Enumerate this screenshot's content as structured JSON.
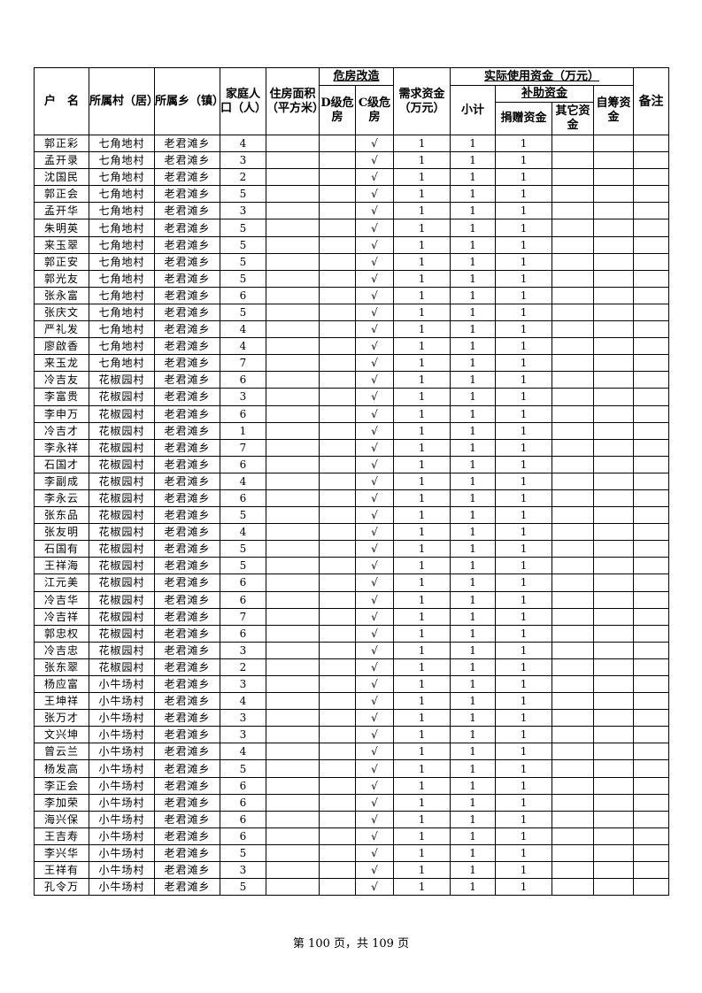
{
  "header": {
    "name": "户　名",
    "village": "所属村（居）",
    "town": "所属乡（镇）",
    "population": "家庭人口（人）",
    "area": "住房面积（平方米）",
    "renovation": "危房改造",
    "d_level": "D级危房",
    "c_level": "C级危房",
    "need_funds": "需求资金（万元）",
    "actual_funds": "实际使用资金（万元）",
    "subtotal": "小计",
    "subsidy": "补助资金",
    "donated": "捐赠资金",
    "other": "其它资金",
    "self_raised": "自筹资金",
    "remarks": "备注"
  },
  "rows": [
    [
      "郭正彩",
      "七角地村",
      "老君滩乡",
      "4"
    ],
    [
      "孟开录",
      "七角地村",
      "老君滩乡",
      "3"
    ],
    [
      "沈国民",
      "七角地村",
      "老君滩乡",
      "2"
    ],
    [
      "郭正会",
      "七角地村",
      "老君滩乡",
      "5"
    ],
    [
      "孟开华",
      "七角地村",
      "老君滩乡",
      "3"
    ],
    [
      "朱明英",
      "七角地村",
      "老君滩乡",
      "5"
    ],
    [
      "来玉翠",
      "七角地村",
      "老君滩乡",
      "5"
    ],
    [
      "郭正安",
      "七角地村",
      "老君滩乡",
      "5"
    ],
    [
      "郭光友",
      "七角地村",
      "老君滩乡",
      "5"
    ],
    [
      "张永富",
      "七角地村",
      "老君滩乡",
      "6"
    ],
    [
      "张庆文",
      "七角地村",
      "老君滩乡",
      "5"
    ],
    [
      "严礼发",
      "七角地村",
      "老君滩乡",
      "4"
    ],
    [
      "廖啟香",
      "七角地村",
      "老君滩乡",
      "4"
    ],
    [
      "来玉龙",
      "七角地村",
      "老君滩乡",
      "7"
    ],
    [
      "冷吉友",
      "花椒园村",
      "老君滩乡",
      "6"
    ],
    [
      "李富贵",
      "花椒园村",
      "老君滩乡",
      "3"
    ],
    [
      "李申万",
      "花椒园村",
      "老君滩乡",
      "6"
    ],
    [
      "冷吉才",
      "花椒园村",
      "老君滩乡",
      "1"
    ],
    [
      "李永祥",
      "花椒园村",
      "老君滩乡",
      "7"
    ],
    [
      "石国才",
      "花椒园村",
      "老君滩乡",
      "6"
    ],
    [
      "李副成",
      "花椒园村",
      "老君滩乡",
      "4"
    ],
    [
      "李永云",
      "花椒园村",
      "老君滩乡",
      "6"
    ],
    [
      "张东品",
      "花椒园村",
      "老君滩乡",
      "5"
    ],
    [
      "张友明",
      "花椒园村",
      "老君滩乡",
      "4"
    ],
    [
      "石国有",
      "花椒园村",
      "老君滩乡",
      "5"
    ],
    [
      "王祥海",
      "花椒园村",
      "老君滩乡",
      "5"
    ],
    [
      "江元美",
      "花椒园村",
      "老君滩乡",
      "6"
    ],
    [
      "冷吉华",
      "花椒园村",
      "老君滩乡",
      "6"
    ],
    [
      "冷吉祥",
      "花椒园村",
      "老君滩乡",
      "7"
    ],
    [
      "郭忠权",
      "花椒园村",
      "老君滩乡",
      "6"
    ],
    [
      "冷吉忠",
      "花椒园村",
      "老君滩乡",
      "3"
    ],
    [
      "张东翠",
      "花椒园村",
      "老君滩乡",
      "2"
    ],
    [
      "杨应富",
      "小牛场村",
      "老君滩乡",
      "3"
    ],
    [
      "王坤祥",
      "小牛场村",
      "老君滩乡",
      "4"
    ],
    [
      "张万才",
      "小牛场村",
      "老君滩乡",
      "3"
    ],
    [
      "文兴坤",
      "小牛场村",
      "老君滩乡",
      "3"
    ],
    [
      "曾云兰",
      "小牛场村",
      "老君滩乡",
      "4"
    ],
    [
      "杨发高",
      "小牛场村",
      "老君滩乡",
      "5"
    ],
    [
      "李正会",
      "小牛场村",
      "老君滩乡",
      "6"
    ],
    [
      "李加荣",
      "小牛场村",
      "老君滩乡",
      "6"
    ],
    [
      "海兴保",
      "小牛场村",
      "老君滩乡",
      "6"
    ],
    [
      "王吉寿",
      "小牛场村",
      "老君滩乡",
      "6"
    ],
    [
      "李兴华",
      "小牛场村",
      "老君滩乡",
      "5"
    ],
    [
      "王祥有",
      "小牛场村",
      "老君滩乡",
      "3"
    ],
    [
      "孔令万",
      "小牛场村",
      "老君滩乡",
      "5"
    ]
  ],
  "row_common": {
    "d_level": "",
    "c_level": "√",
    "need_funds": "1",
    "subtotal": "1",
    "donated": "1",
    "other": "",
    "self_raised": "",
    "remarks": ""
  },
  "footer": "第 100 页，共 109 页"
}
